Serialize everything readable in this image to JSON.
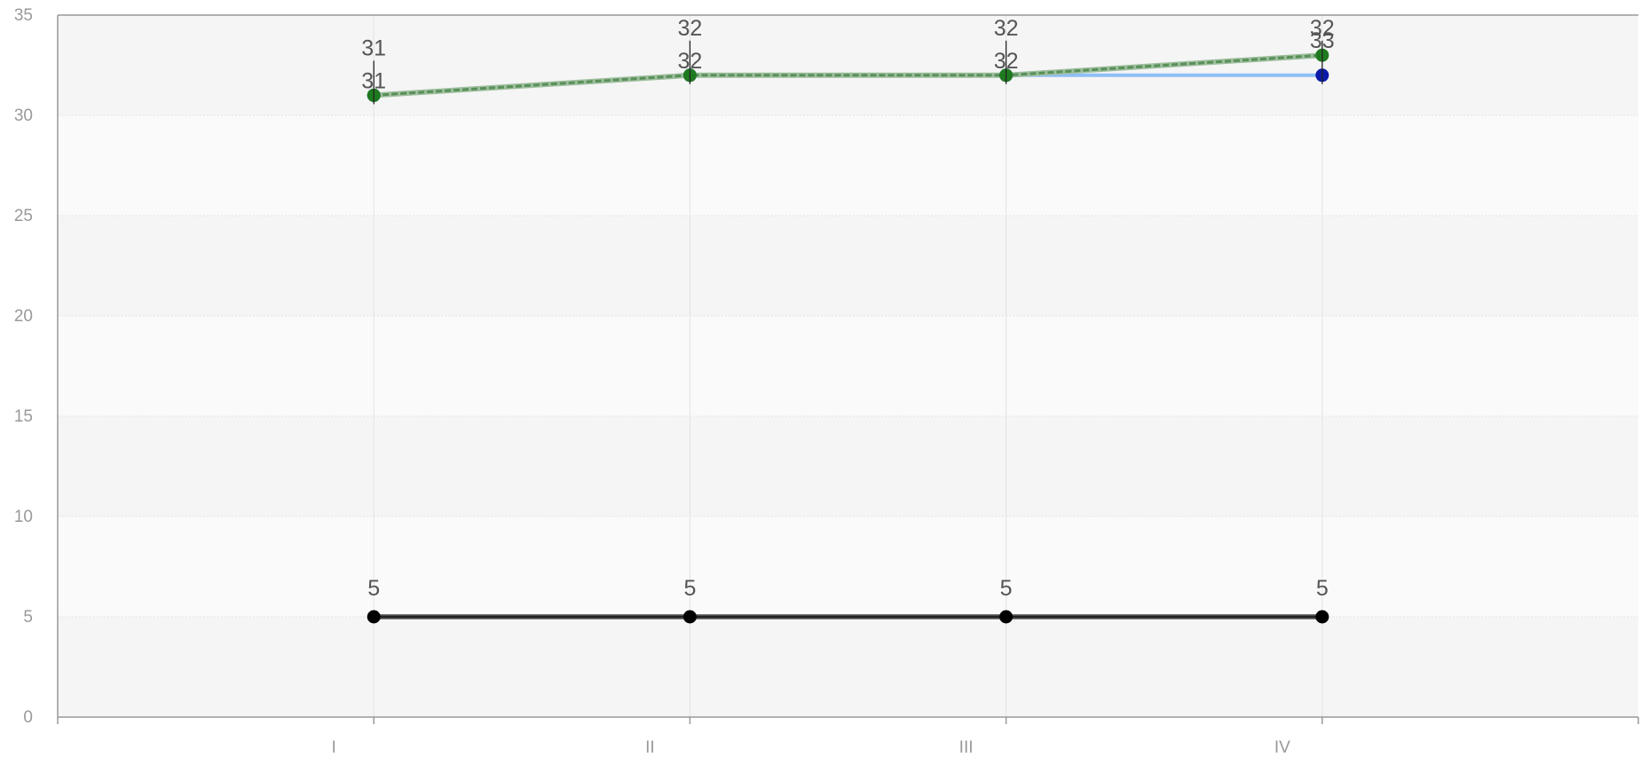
{
  "chart_data": {
    "type": "line",
    "title": "",
    "xlabel": "",
    "ylabel": "",
    "categories": [
      "I",
      "II",
      "III",
      "IV"
    ],
    "ylim": [
      0,
      35
    ],
    "yticks": [
      0,
      5,
      10,
      15,
      20,
      25,
      30,
      35
    ],
    "grid": true,
    "legend": "none",
    "series": [
      {
        "key": "blue",
        "values": [
          31,
          32,
          32,
          32
        ],
        "line_color": "#8fbff5",
        "marker_color": "#0b1aa8",
        "dashed": false,
        "labels": [
          "31",
          "32",
          "32",
          "32"
        ]
      },
      {
        "key": "green",
        "values": [
          31,
          32,
          32,
          33
        ],
        "line_color": "#5a8f5a",
        "marker_color": "#1f7a1f",
        "dashed": true,
        "labels": [
          "31",
          "32",
          "32",
          "33"
        ]
      },
      {
        "key": "black",
        "values": [
          5,
          5,
          5,
          5
        ],
        "line_color": "#222222",
        "marker_color": "#000000",
        "dashed": false,
        "labels": [
          "5",
          "5",
          "5",
          "5"
        ]
      }
    ],
    "annotations": [
      {
        "category": "I",
        "value": 31,
        "text": "31"
      },
      {
        "category": "II",
        "value": 32,
        "text": "32"
      },
      {
        "category": "III",
        "value": 32,
        "text": "32"
      },
      {
        "category": "IV",
        "value": 32,
        "text": "32"
      }
    ],
    "colors": {
      "band_light": "#fafafa",
      "band_dark": "#f5f5f5",
      "grid": "#e3e3e3",
      "axis": "#999999"
    }
  }
}
